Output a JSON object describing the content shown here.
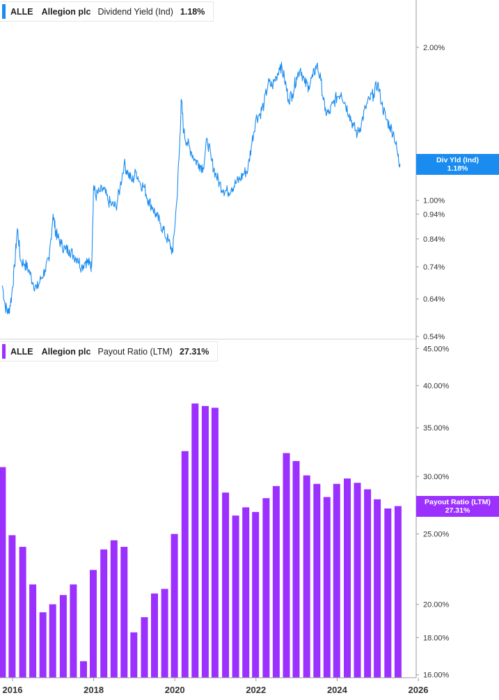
{
  "colors": {
    "yield": "#1a8cf0",
    "payout": "#9b30ff",
    "axis": "#9a9a9a",
    "tick_text": "#333333"
  },
  "top_legend": {
    "symbol": "ALLE",
    "company": "Allegion plc",
    "metric": "Dividend Yield (Ind)",
    "value": "1.18%"
  },
  "top_tag": {
    "line1": "Div Yld (Ind)",
    "line2": "1.18%"
  },
  "bottom_legend": {
    "symbol": "ALLE",
    "company": "Allegion plc",
    "metric": "Payout Ratio (LTM)",
    "value": "27.31%"
  },
  "bottom_tag": {
    "line1": "Payout Ratio (LTM)",
    "line2": "27.31%"
  },
  "chart_data": [
    {
      "type": "line",
      "series": [
        {
          "name": "Dividend Yield (Ind)"
        }
      ],
      "y_scale": "log",
      "ylim": [
        0.54,
        2.2
      ],
      "y_ticks": [
        "2.00%",
        "1.00%",
        "0.94%",
        "0.84%",
        "0.74%",
        "0.64%",
        "0.54%"
      ],
      "x_ticks": [
        "2016",
        "2018",
        "2020",
        "2022",
        "2024",
        "2026"
      ],
      "x": [
        2015.75,
        2015.82,
        2015.9,
        2015.98,
        2016.05,
        2016.12,
        2016.2,
        2016.3,
        2016.4,
        2016.5,
        2016.6,
        2016.7,
        2016.8,
        2016.9,
        2017.0,
        2017.05,
        2017.1,
        2017.2,
        2017.3,
        2017.4,
        2017.5,
        2017.6,
        2017.7,
        2017.8,
        2017.9,
        2017.95,
        2018.0,
        2018.05,
        2018.15,
        2018.25,
        2018.35,
        2018.45,
        2018.55,
        2018.65,
        2018.75,
        2018.85,
        2018.95,
        2019.05,
        2019.15,
        2019.25,
        2019.35,
        2019.45,
        2019.55,
        2019.65,
        2019.75,
        2019.85,
        2019.95,
        2020.05,
        2020.12,
        2020.16,
        2020.22,
        2020.3,
        2020.4,
        2020.5,
        2020.6,
        2020.7,
        2020.8,
        2020.9,
        2021.0,
        2021.1,
        2021.2,
        2021.3,
        2021.4,
        2021.5,
        2021.6,
        2021.7,
        2021.8,
        2021.9,
        2022.0,
        2022.1,
        2022.2,
        2022.3,
        2022.4,
        2022.5,
        2022.6,
        2022.7,
        2022.8,
        2022.9,
        2023.0,
        2023.1,
        2023.2,
        2023.3,
        2023.4,
        2023.5,
        2023.6,
        2023.7,
        2023.8,
        2023.9,
        2024.0,
        2024.1,
        2024.2,
        2024.3,
        2024.4,
        2024.5,
        2024.6,
        2024.7,
        2024.8,
        2024.9,
        2025.0,
        2025.1,
        2025.2,
        2025.3,
        2025.4,
        2025.5,
        2025.55
      ],
      "y": [
        0.68,
        0.62,
        0.6,
        0.65,
        0.74,
        0.88,
        0.76,
        0.75,
        0.73,
        0.69,
        0.67,
        0.7,
        0.73,
        0.76,
        0.94,
        0.88,
        0.85,
        0.82,
        0.8,
        0.8,
        0.78,
        0.77,
        0.74,
        0.76,
        0.75,
        0.74,
        1.07,
        1.02,
        1.04,
        1.05,
        1.0,
        0.98,
        0.97,
        1.06,
        1.18,
        1.13,
        1.09,
        1.14,
        1.08,
        1.06,
        1.0,
        0.97,
        0.93,
        0.9,
        0.86,
        0.83,
        0.79,
        1.0,
        1.28,
        1.58,
        1.36,
        1.3,
        1.25,
        1.2,
        1.18,
        1.16,
        1.32,
        1.2,
        1.13,
        1.08,
        1.05,
        1.04,
        1.06,
        1.08,
        1.1,
        1.13,
        1.15,
        1.3,
        1.45,
        1.48,
        1.55,
        1.7,
        1.68,
        1.75,
        1.85,
        1.74,
        1.58,
        1.62,
        1.75,
        1.82,
        1.7,
        1.68,
        1.75,
        1.85,
        1.72,
        1.5,
        1.48,
        1.55,
        1.6,
        1.63,
        1.55,
        1.48,
        1.4,
        1.35,
        1.42,
        1.52,
        1.58,
        1.62,
        1.7,
        1.55,
        1.45,
        1.4,
        1.35,
        1.22,
        1.18
      ]
    },
    {
      "type": "bar",
      "series": [
        {
          "name": "Payout Ratio (LTM)"
        }
      ],
      "y_scale": "log",
      "ylim": [
        15.8,
        45.0
      ],
      "y_ticks": [
        "45.00%",
        "40.00%",
        "35.00%",
        "30.00%",
        "25.00%",
        "20.00%",
        "18.00%",
        "16.00%"
      ],
      "x_ticks": [
        "2016",
        "2018",
        "2020",
        "2022",
        "2024",
        "2026"
      ],
      "x": [
        2015.75,
        2015.99,
        2016.25,
        2016.5,
        2016.75,
        2016.99,
        2017.25,
        2017.5,
        2017.75,
        2017.99,
        2018.25,
        2018.5,
        2018.75,
        2018.99,
        2019.25,
        2019.5,
        2019.75,
        2019.99,
        2020.25,
        2020.5,
        2020.75,
        2020.99,
        2021.25,
        2021.5,
        2021.75,
        2021.99,
        2022.25,
        2022.5,
        2022.75,
        2022.99,
        2023.25,
        2023.5,
        2023.75,
        2023.99,
        2024.25,
        2024.5,
        2024.75,
        2024.99,
        2025.25,
        2025.5
      ],
      "values": [
        30.9,
        24.9,
        24.0,
        21.3,
        19.5,
        20.0,
        20.6,
        21.3,
        16.7,
        22.3,
        23.8,
        24.5,
        24.0,
        18.3,
        19.2,
        20.7,
        21.0,
        25.0,
        32.5,
        37.8,
        37.5,
        37.3,
        28.5,
        26.5,
        27.2,
        26.8,
        28.0,
        29.1,
        32.3,
        31.5,
        30.1,
        29.3,
        28.1,
        29.3,
        29.8,
        29.4,
        28.8,
        27.9,
        27.1,
        27.31
      ]
    }
  ]
}
